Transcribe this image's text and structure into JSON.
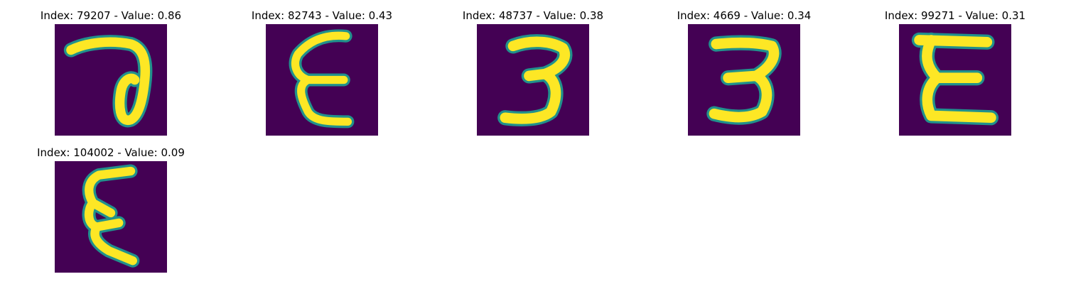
{
  "palette": {
    "background": "#440154",
    "edge": "#21918c",
    "mid": "#5ec962",
    "stroke": "#fde725"
  },
  "tiles": [
    {
      "title": "Index: 79207 - Value: 0.86",
      "glyph": "digit-7-with-loop"
    },
    {
      "title": "Index: 82743 - Value: 0.43",
      "glyph": "epsilon"
    },
    {
      "title": "Index: 48737 - Value: 0.38",
      "glyph": "digit-3"
    },
    {
      "title": "Index: 4669 - Value: 0.34",
      "glyph": "digit-3"
    },
    {
      "title": "Index: 99271 - Value: 0.31",
      "glyph": "epsilon"
    },
    {
      "title": "Index: 104002 - Value: 0.09",
      "glyph": "epsilon"
    }
  ]
}
